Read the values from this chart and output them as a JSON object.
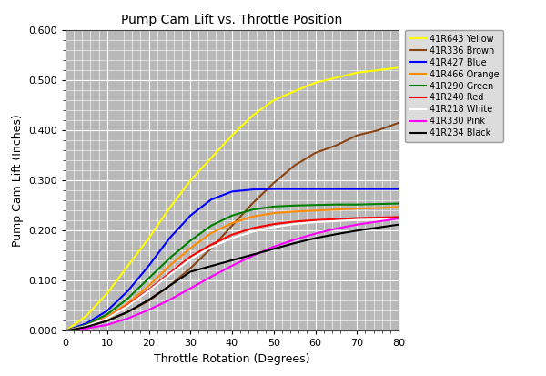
{
  "title": "Pump Cam Lift vs. Throttle Position",
  "xlabel": "Throttle Rotation (Degrees)",
  "ylabel": "Pump Cam Lift (Inches)",
  "xlim": [
    0,
    80
  ],
  "ylim": [
    0.0,
    0.6
  ],
  "xticks": [
    0,
    10,
    20,
    30,
    40,
    50,
    60,
    70,
    80
  ],
  "yticks": [
    0.0,
    0.1,
    0.2,
    0.3,
    0.4,
    0.5,
    0.6
  ],
  "plot_bg_color": "#b8b8b8",
  "fig_bg_color": "#ffffff",
  "series": [
    {
      "label": "41R643 Yellow",
      "color": "#ffff00",
      "x": [
        0,
        5,
        10,
        15,
        20,
        25,
        30,
        35,
        40,
        45,
        50,
        55,
        60,
        65,
        70,
        75,
        80
      ],
      "y": [
        0.0,
        0.03,
        0.075,
        0.13,
        0.185,
        0.245,
        0.3,
        0.345,
        0.39,
        0.43,
        0.46,
        0.478,
        0.495,
        0.505,
        0.515,
        0.52,
        0.525
      ]
    },
    {
      "label": "41R336 Brown",
      "color": "#8B4513",
      "x": [
        0,
        5,
        10,
        15,
        20,
        25,
        30,
        35,
        40,
        45,
        50,
        55,
        60,
        65,
        70,
        75,
        80
      ],
      "y": [
        0.0,
        0.008,
        0.02,
        0.038,
        0.06,
        0.09,
        0.125,
        0.165,
        0.21,
        0.255,
        0.295,
        0.33,
        0.355,
        0.37,
        0.39,
        0.4,
        0.415
      ]
    },
    {
      "label": "41R427 Blue",
      "color": "#0000ff",
      "x": [
        0,
        5,
        10,
        15,
        20,
        25,
        30,
        35,
        40,
        45,
        50,
        55,
        60,
        65,
        70,
        75,
        80
      ],
      "y": [
        0.0,
        0.015,
        0.04,
        0.08,
        0.13,
        0.185,
        0.23,
        0.262,
        0.278,
        0.282,
        0.283,
        0.283,
        0.283,
        0.283,
        0.283,
        0.283,
        0.283
      ]
    },
    {
      "label": "41R466 Orange",
      "color": "#ff8c00",
      "x": [
        0,
        5,
        10,
        15,
        20,
        25,
        30,
        35,
        40,
        45,
        50,
        55,
        60,
        65,
        70,
        75,
        80
      ],
      "y": [
        0.0,
        0.01,
        0.028,
        0.055,
        0.09,
        0.13,
        0.165,
        0.195,
        0.215,
        0.228,
        0.235,
        0.238,
        0.24,
        0.242,
        0.244,
        0.245,
        0.247
      ]
    },
    {
      "label": "41R290 Green",
      "color": "#008000",
      "x": [
        0,
        5,
        10,
        15,
        20,
        25,
        30,
        35,
        40,
        45,
        50,
        55,
        60,
        65,
        70,
        75,
        80
      ],
      "y": [
        0.0,
        0.012,
        0.033,
        0.065,
        0.105,
        0.145,
        0.18,
        0.21,
        0.23,
        0.242,
        0.248,
        0.25,
        0.251,
        0.252,
        0.252,
        0.253,
        0.254
      ]
    },
    {
      "label": "41R240 Red",
      "color": "#ff0000",
      "x": [
        0,
        5,
        10,
        15,
        20,
        25,
        30,
        35,
        40,
        45,
        50,
        55,
        60,
        65,
        70,
        75,
        80
      ],
      "y": [
        0.0,
        0.01,
        0.025,
        0.052,
        0.082,
        0.115,
        0.148,
        0.172,
        0.192,
        0.205,
        0.213,
        0.218,
        0.221,
        0.223,
        0.225,
        0.226,
        0.227
      ]
    },
    {
      "label": "41R218 White",
      "color": "#ffffff",
      "x": [
        0,
        5,
        10,
        15,
        20,
        25,
        30,
        35,
        40,
        45,
        50,
        55,
        60,
        65,
        70,
        75,
        80
      ],
      "y": [
        0.0,
        0.01,
        0.025,
        0.05,
        0.08,
        0.112,
        0.143,
        0.167,
        0.185,
        0.198,
        0.207,
        0.213,
        0.217,
        0.219,
        0.221,
        0.222,
        0.223
      ]
    },
    {
      "label": "41R330 Pink",
      "color": "#ff00ff",
      "x": [
        0,
        5,
        10,
        15,
        20,
        25,
        30,
        35,
        40,
        45,
        50,
        55,
        60,
        65,
        70,
        75,
        80
      ],
      "y": [
        0.0,
        0.005,
        0.012,
        0.025,
        0.042,
        0.062,
        0.085,
        0.108,
        0.13,
        0.15,
        0.168,
        0.182,
        0.194,
        0.204,
        0.212,
        0.218,
        0.224
      ]
    },
    {
      "label": "41R234 Black",
      "color": "#000000",
      "x": [
        0,
        5,
        10,
        15,
        20,
        25,
        30,
        55,
        60,
        65,
        70,
        75,
        80
      ],
      "y": [
        0.0,
        0.008,
        0.02,
        0.038,
        0.062,
        0.09,
        0.118,
        0.175,
        0.185,
        0.193,
        0.2,
        0.206,
        0.212
      ]
    }
  ],
  "legend_bg": "#d4d4d4",
  "legend_edge": "#888888",
  "grid_color": "#ffffff",
  "linewidth": 1.5,
  "title_fontsize": 10,
  "axis_label_fontsize": 9,
  "tick_fontsize": 8,
  "legend_fontsize": 7
}
